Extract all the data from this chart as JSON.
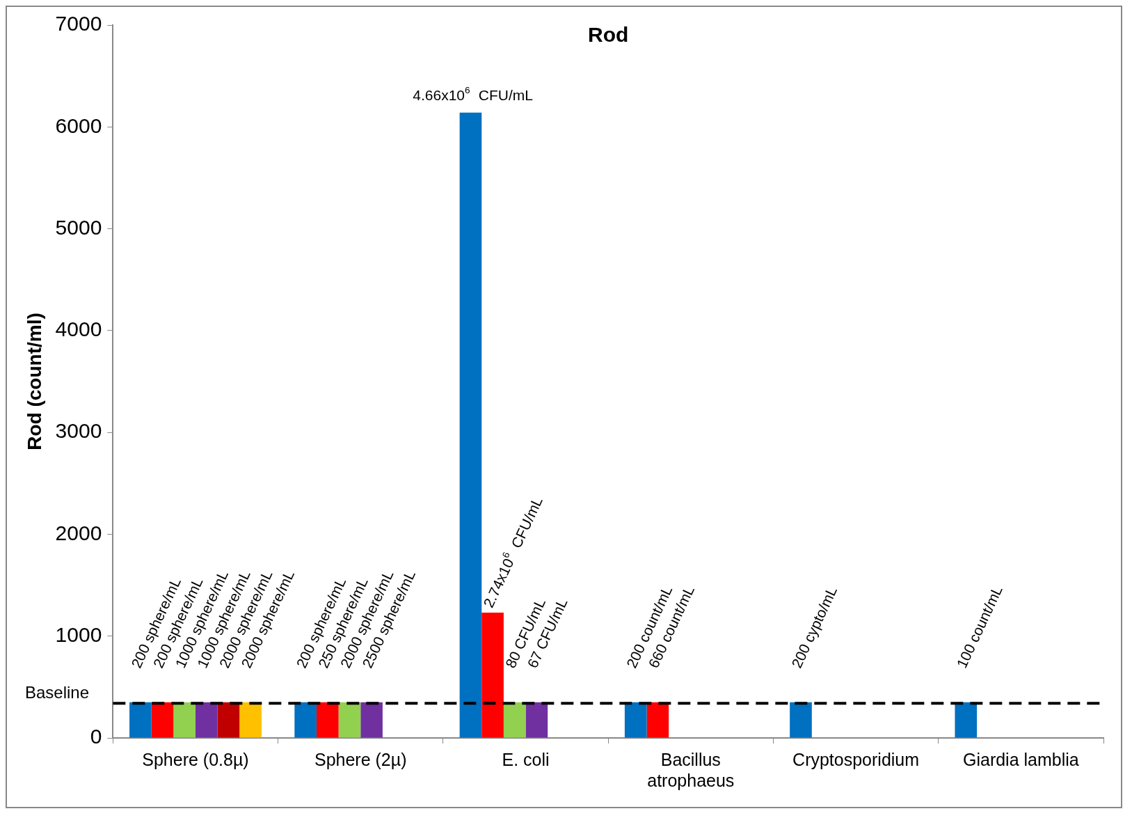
{
  "chart_data": {
    "type": "bar",
    "title": "Rod",
    "ylabel": "Rod (count/ml)",
    "categories": [
      "Sphere (0.8µ)",
      "Sphere (2µ)",
      "E. coli",
      "Bacillus atrophaeus",
      "Cryptosporidium",
      "Giardia lamblia"
    ],
    "series": [
      {
        "color": "#0070c0",
        "values": [
          350,
          350,
          6140,
          350,
          350,
          350
        ]
      },
      {
        "color": "#ff0000",
        "values": [
          350,
          350,
          1230,
          350,
          null,
          null
        ]
      },
      {
        "color": "#92d050",
        "values": [
          350,
          350,
          350,
          null,
          null,
          null
        ]
      },
      {
        "color": "#7030a0",
        "values": [
          350,
          350,
          350,
          null,
          null,
          null
        ]
      },
      {
        "color": "#c00000",
        "values": [
          350,
          null,
          null,
          null,
          null,
          null
        ]
      },
      {
        "color": "#ffc000",
        "values": [
          350,
          null,
          null,
          null,
          null,
          null
        ]
      }
    ],
    "annotations": [
      "200 sphere/mL",
      "200 sphere/mL",
      "1000 sphere/mL",
      "1000 sphere/mL",
      "2000 sphere/mL",
      "2000 sphere/mL",
      "200 sphere/mL",
      "250 sphere/mL",
      "2000 sphere/mL",
      "2500 sphere/mL",
      "4.66x10$^{6}$ CFU/mL",
      "2.74x10$^{6}$ CFU/mL",
      "80 CFU/mL",
      "67 CFU/mL",
      "200 count/mL",
      "660 count/mL",
      "200 cypto/mL",
      "100 count/mL"
    ],
    "ylim": [
      0,
      7000
    ],
    "yticks": [
      0,
      1000,
      2000,
      3000,
      4000,
      5000,
      6000,
      7000
    ],
    "ref_lines": [
      {
        "axis": "y",
        "value": 340,
        "label": "Baseline",
        "color": "#000000",
        "line_style": "dashed"
      }
    ],
    "grid": false,
    "legend": false
  }
}
